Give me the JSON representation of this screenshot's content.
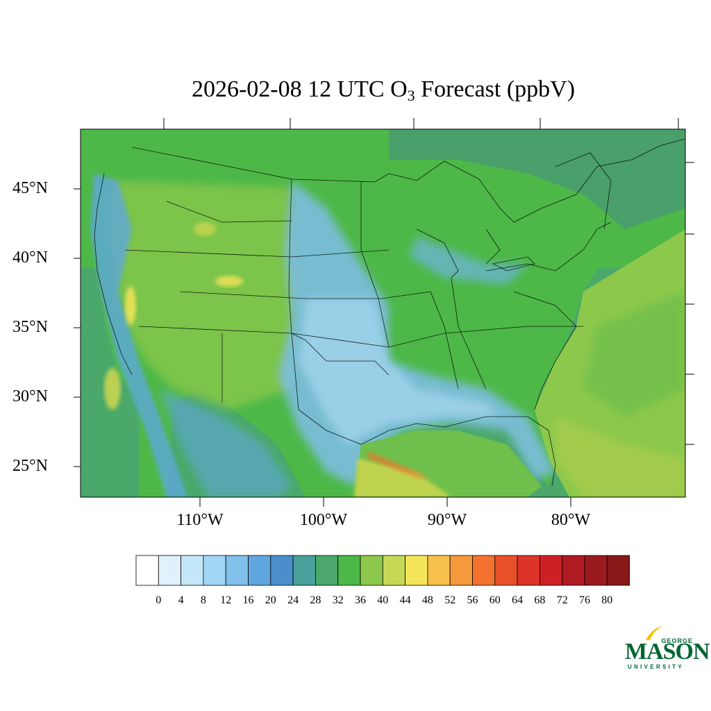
{
  "title": {
    "main": "2026-02-08 12 UTC O",
    "sub": "3",
    "rest": " Forecast (ppbV)"
  },
  "map": {
    "lat_labels": [
      "45°N",
      "40°N",
      "35°N",
      "30°N",
      "25°N"
    ],
    "lat_values": [
      45,
      40,
      35,
      30,
      25
    ],
    "lon_labels": [
      "110°W",
      "100°W",
      "90°W",
      "80°W"
    ],
    "lon_values": [
      -110,
      -100,
      -90,
      -80
    ],
    "colors": {
      "ocean_pacific": "#4aa86a",
      "land_green": "#4db848",
      "blue_low": "#5fa8dc",
      "gulf_yellow": "#c9d650",
      "atlantic": "#8cc84c"
    }
  },
  "colorbar": {
    "ticks": [
      "0",
      "4",
      "8",
      "12",
      "16",
      "20",
      "24",
      "28",
      "32",
      "36",
      "40",
      "44",
      "48",
      "52",
      "56",
      "60",
      "64",
      "68",
      "72",
      "76",
      "80"
    ],
    "colors": [
      "#ffffff",
      "#dff1fb",
      "#c3e6f8",
      "#a1d6f4",
      "#80c0ea",
      "#60a6de",
      "#4a8fcc",
      "#4aa09a",
      "#4ca86c",
      "#4db848",
      "#8cc84c",
      "#c6d856",
      "#f4e45a",
      "#f7c04c",
      "#f59a3c",
      "#f2722e",
      "#e8502a",
      "#dc3428",
      "#cd2026",
      "#b01a22",
      "#9a1a1e",
      "#881818"
    ]
  },
  "logo": {
    "george": "GEORGE",
    "mason": "MASON",
    "university": "UNIVERSITY"
  }
}
